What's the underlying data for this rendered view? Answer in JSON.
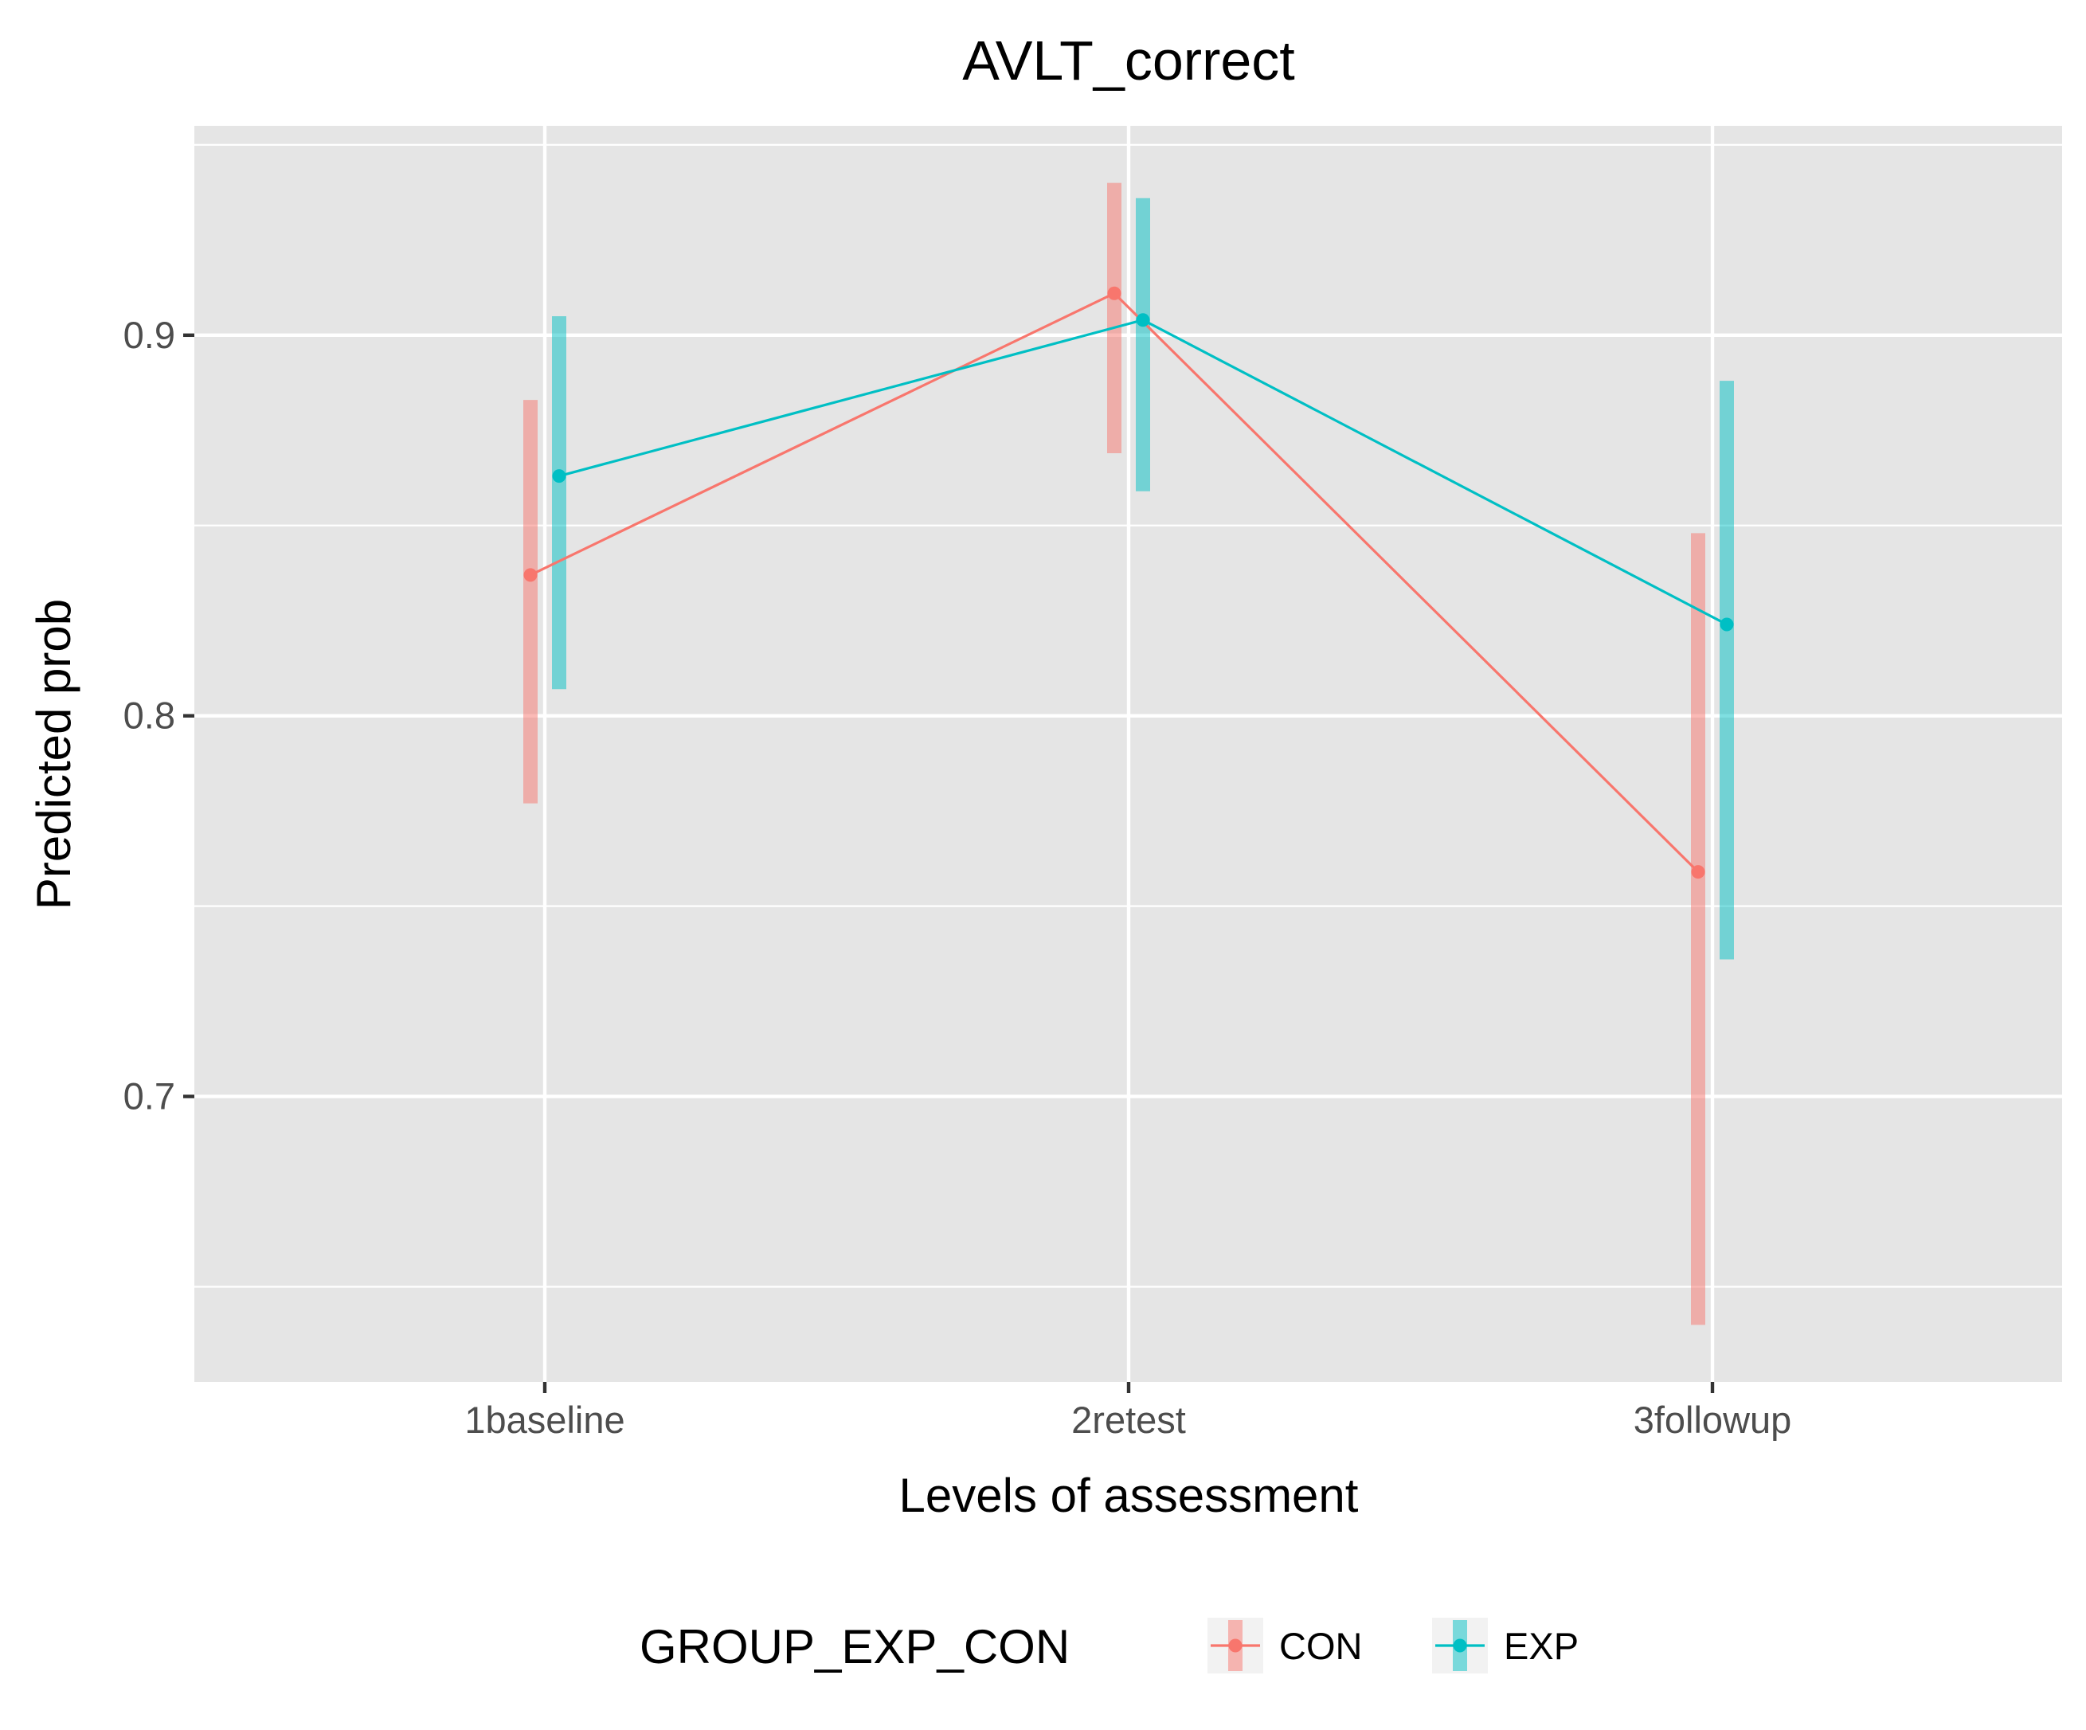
{
  "chart_data": {
    "type": "line",
    "title": "AVLT_correct",
    "xlabel": "Levels of assessment",
    "ylabel": "Predicted prob",
    "categories": [
      "1baseline",
      "2retest",
      "3followup"
    ],
    "y_ticks": [
      0.7,
      0.8,
      0.9
    ],
    "y_tick_labels": [
      "0.7",
      "0.8",
      "0.9"
    ],
    "ylim": [
      0.625,
      0.955
    ],
    "grid": true,
    "legend": {
      "title": "GROUP_EXP_CON",
      "position": "bottom"
    },
    "series": [
      {
        "name": "CON",
        "color": "#F8766D",
        "values": [
          0.837,
          0.911,
          0.759
        ],
        "lower": [
          0.777,
          0.869,
          0.64
        ],
        "upper": [
          0.883,
          0.94,
          0.848
        ]
      },
      {
        "name": "EXP",
        "color": "#00BFC4",
        "values": [
          0.863,
          0.904,
          0.824
        ],
        "lower": [
          0.807,
          0.859,
          0.736
        ],
        "upper": [
          0.905,
          0.936,
          0.888
        ]
      }
    ]
  }
}
